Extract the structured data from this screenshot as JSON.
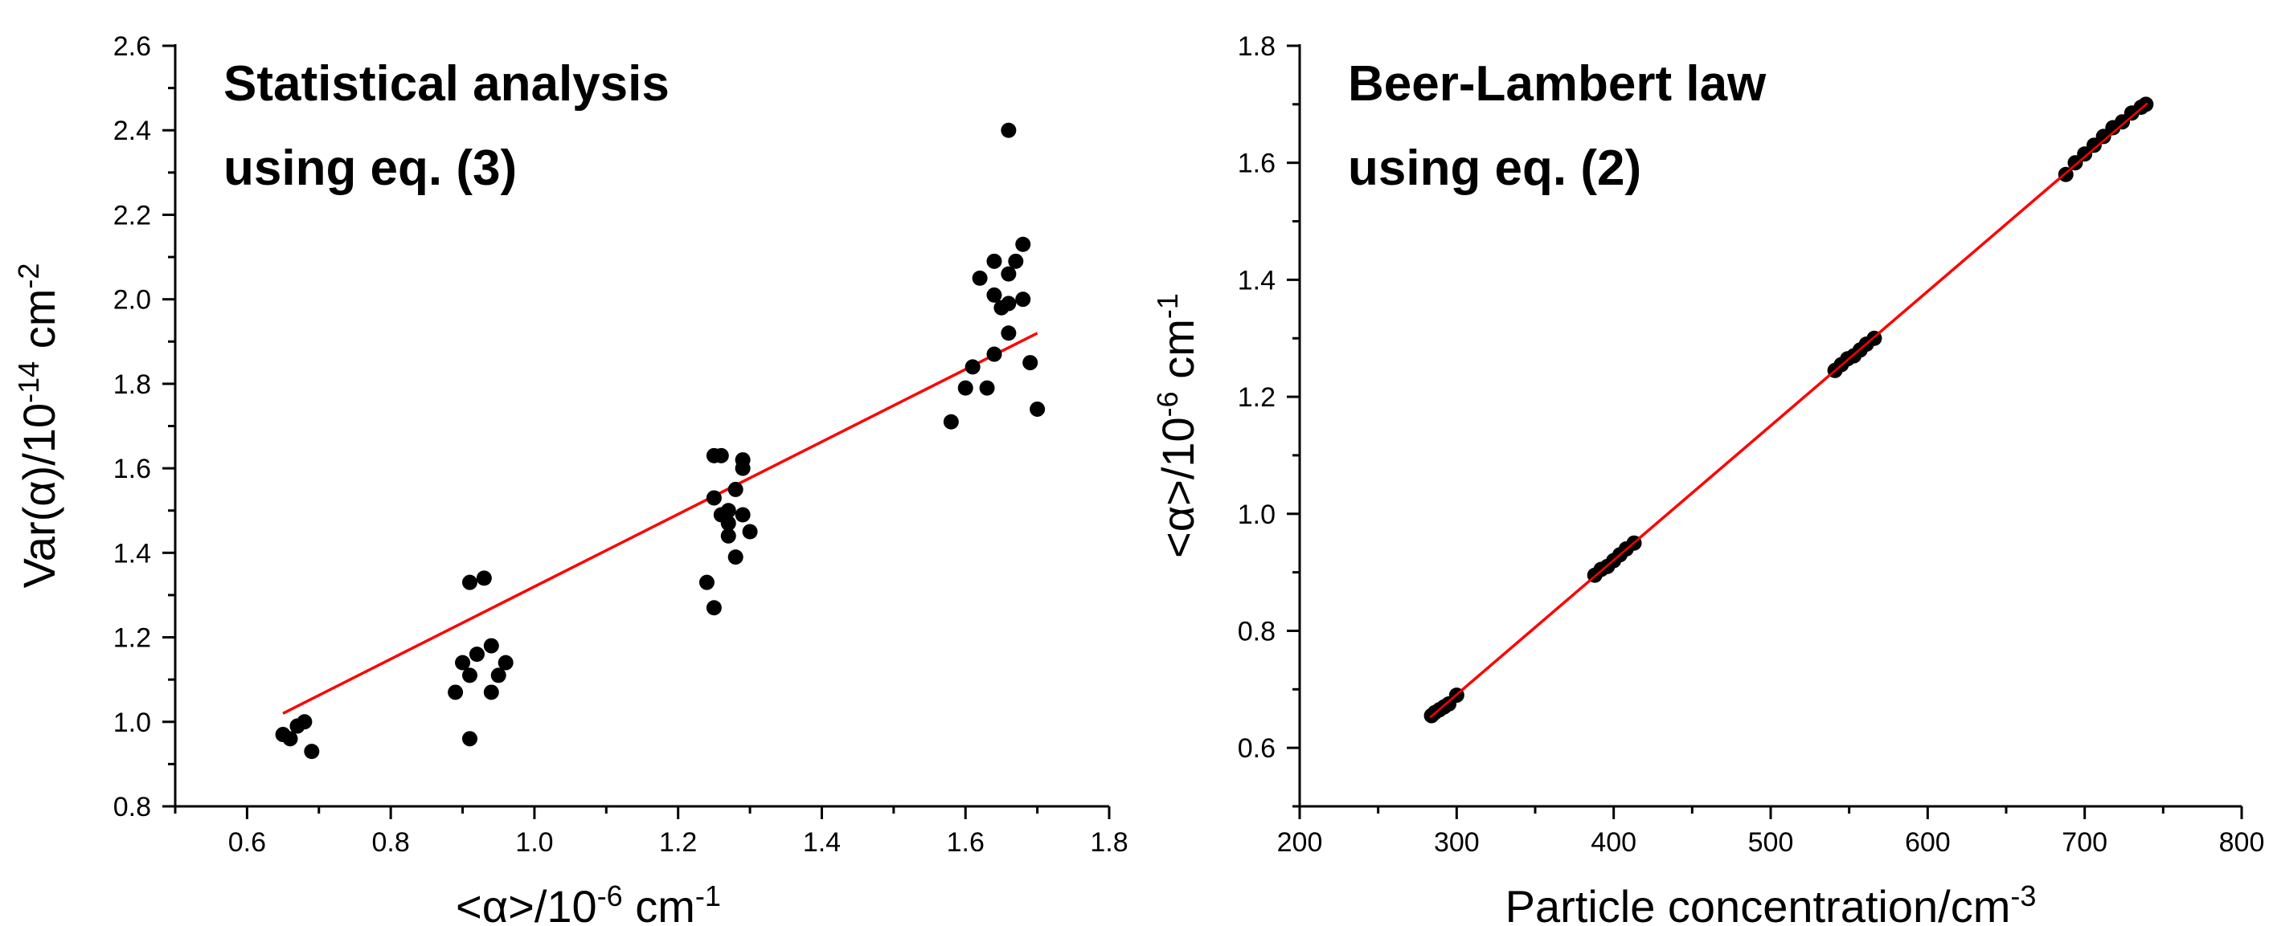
{
  "colors": {
    "fit_line": "#ff0000",
    "points": "#000000",
    "axis": "#000000"
  },
  "chart_data": [
    {
      "type": "scatter",
      "annotations": [
        "Statistical analysis",
        "using eq. (3)"
      ],
      "xlabel": {
        "pre": "<",
        "sym": "α",
        "post": ">/10",
        "sup": "-6",
        "unit": " cm",
        "unit_sup": "-1"
      },
      "ylabel": {
        "pre": "Var(",
        "sym": "α",
        "post": ")/10",
        "sup": "-14",
        "unit": " cm",
        "unit_sup": "-2"
      },
      "xlim": [
        0.5,
        1.8
      ],
      "ylim": [
        0.8,
        2.6
      ],
      "xticks": [
        "0.6",
        "0.8",
        "1.0",
        "1.2",
        "1.4",
        "1.6",
        "1.8"
      ],
      "yticks": [
        "0.8",
        "1.0",
        "1.2",
        "1.4",
        "1.6",
        "1.8",
        "2.0",
        "2.2",
        "2.4",
        "2.6"
      ],
      "points": [
        [
          0.65,
          0.97
        ],
        [
          0.66,
          0.96
        ],
        [
          0.67,
          0.99
        ],
        [
          0.68,
          1.0
        ],
        [
          0.69,
          0.93
        ],
        [
          0.89,
          1.07
        ],
        [
          0.9,
          1.14
        ],
        [
          0.91,
          1.11
        ],
        [
          0.91,
          0.96
        ],
        [
          0.91,
          1.33
        ],
        [
          0.92,
          1.16
        ],
        [
          0.93,
          1.34
        ],
        [
          0.94,
          1.18
        ],
        [
          0.94,
          1.07
        ],
        [
          0.95,
          1.11
        ],
        [
          0.96,
          1.14
        ],
        [
          1.24,
          1.33
        ],
        [
          1.25,
          1.27
        ],
        [
          1.25,
          1.53
        ],
        [
          1.25,
          1.63
        ],
        [
          1.26,
          1.63
        ],
        [
          1.26,
          1.49
        ],
        [
          1.27,
          1.47
        ],
        [
          1.27,
          1.44
        ],
        [
          1.27,
          1.5
        ],
        [
          1.28,
          1.55
        ],
        [
          1.28,
          1.39
        ],
        [
          1.29,
          1.6
        ],
        [
          1.29,
          1.62
        ],
        [
          1.29,
          1.49
        ],
        [
          1.3,
          1.45
        ],
        [
          1.58,
          1.71
        ],
        [
          1.6,
          1.79
        ],
        [
          1.61,
          1.84
        ],
        [
          1.62,
          2.05
        ],
        [
          1.63,
          1.79
        ],
        [
          1.64,
          1.87
        ],
        [
          1.64,
          2.09
        ],
        [
          1.64,
          2.01
        ],
        [
          1.65,
          1.98
        ],
        [
          1.66,
          2.4
        ],
        [
          1.66,
          2.06
        ],
        [
          1.66,
          1.99
        ],
        [
          1.66,
          1.92
        ],
        [
          1.67,
          2.09
        ],
        [
          1.68,
          2.13
        ],
        [
          1.68,
          2.0
        ],
        [
          1.69,
          1.85
        ],
        [
          1.7,
          1.74
        ]
      ],
      "fit": {
        "x": [
          0.65,
          1.7
        ],
        "y": [
          1.02,
          1.92
        ]
      }
    },
    {
      "type": "scatter",
      "annotations": [
        "Beer-Lambert law",
        "using eq. (2)"
      ],
      "xlabel": {
        "pre": "Particle concentration/cm",
        "sym": "",
        "post": "",
        "sup": "",
        "unit": "",
        "unit_sup": "-3"
      },
      "ylabel": {
        "pre": "<",
        "sym": "α",
        "post": ">/10",
        "sup": "-6",
        "unit": " cm",
        "unit_sup": "-1"
      },
      "xlim": [
        200,
        800
      ],
      "ylim": [
        0.5,
        1.8
      ],
      "xticks": [
        "200",
        "300",
        "400",
        "500",
        "600",
        "700",
        "800"
      ],
      "yticks": [
        "0.6",
        "0.8",
        "1.0",
        "1.2",
        "1.4",
        "1.6",
        "1.8"
      ],
      "points": [
        [
          284,
          0.655
        ],
        [
          286,
          0.66
        ],
        [
          289,
          0.665
        ],
        [
          292,
          0.67
        ],
        [
          295,
          0.675
        ],
        [
          300,
          0.69
        ],
        [
          388,
          0.895
        ],
        [
          392,
          0.905
        ],
        [
          396,
          0.91
        ],
        [
          400,
          0.92
        ],
        [
          404,
          0.93
        ],
        [
          408,
          0.94
        ],
        [
          413,
          0.95
        ],
        [
          541,
          1.245
        ],
        [
          545,
          1.255
        ],
        [
          549,
          1.265
        ],
        [
          553,
          1.27
        ],
        [
          557,
          1.28
        ],
        [
          561,
          1.29
        ],
        [
          566,
          1.3
        ],
        [
          688,
          1.58
        ],
        [
          694,
          1.6
        ],
        [
          700,
          1.615
        ],
        [
          706,
          1.63
        ],
        [
          712,
          1.645
        ],
        [
          718,
          1.66
        ],
        [
          724,
          1.67
        ],
        [
          730,
          1.685
        ],
        [
          736,
          1.695
        ],
        [
          739,
          1.7
        ]
      ],
      "fit": {
        "x": [
          283,
          740
        ],
        "y": [
          0.652,
          1.702
        ]
      }
    }
  ]
}
